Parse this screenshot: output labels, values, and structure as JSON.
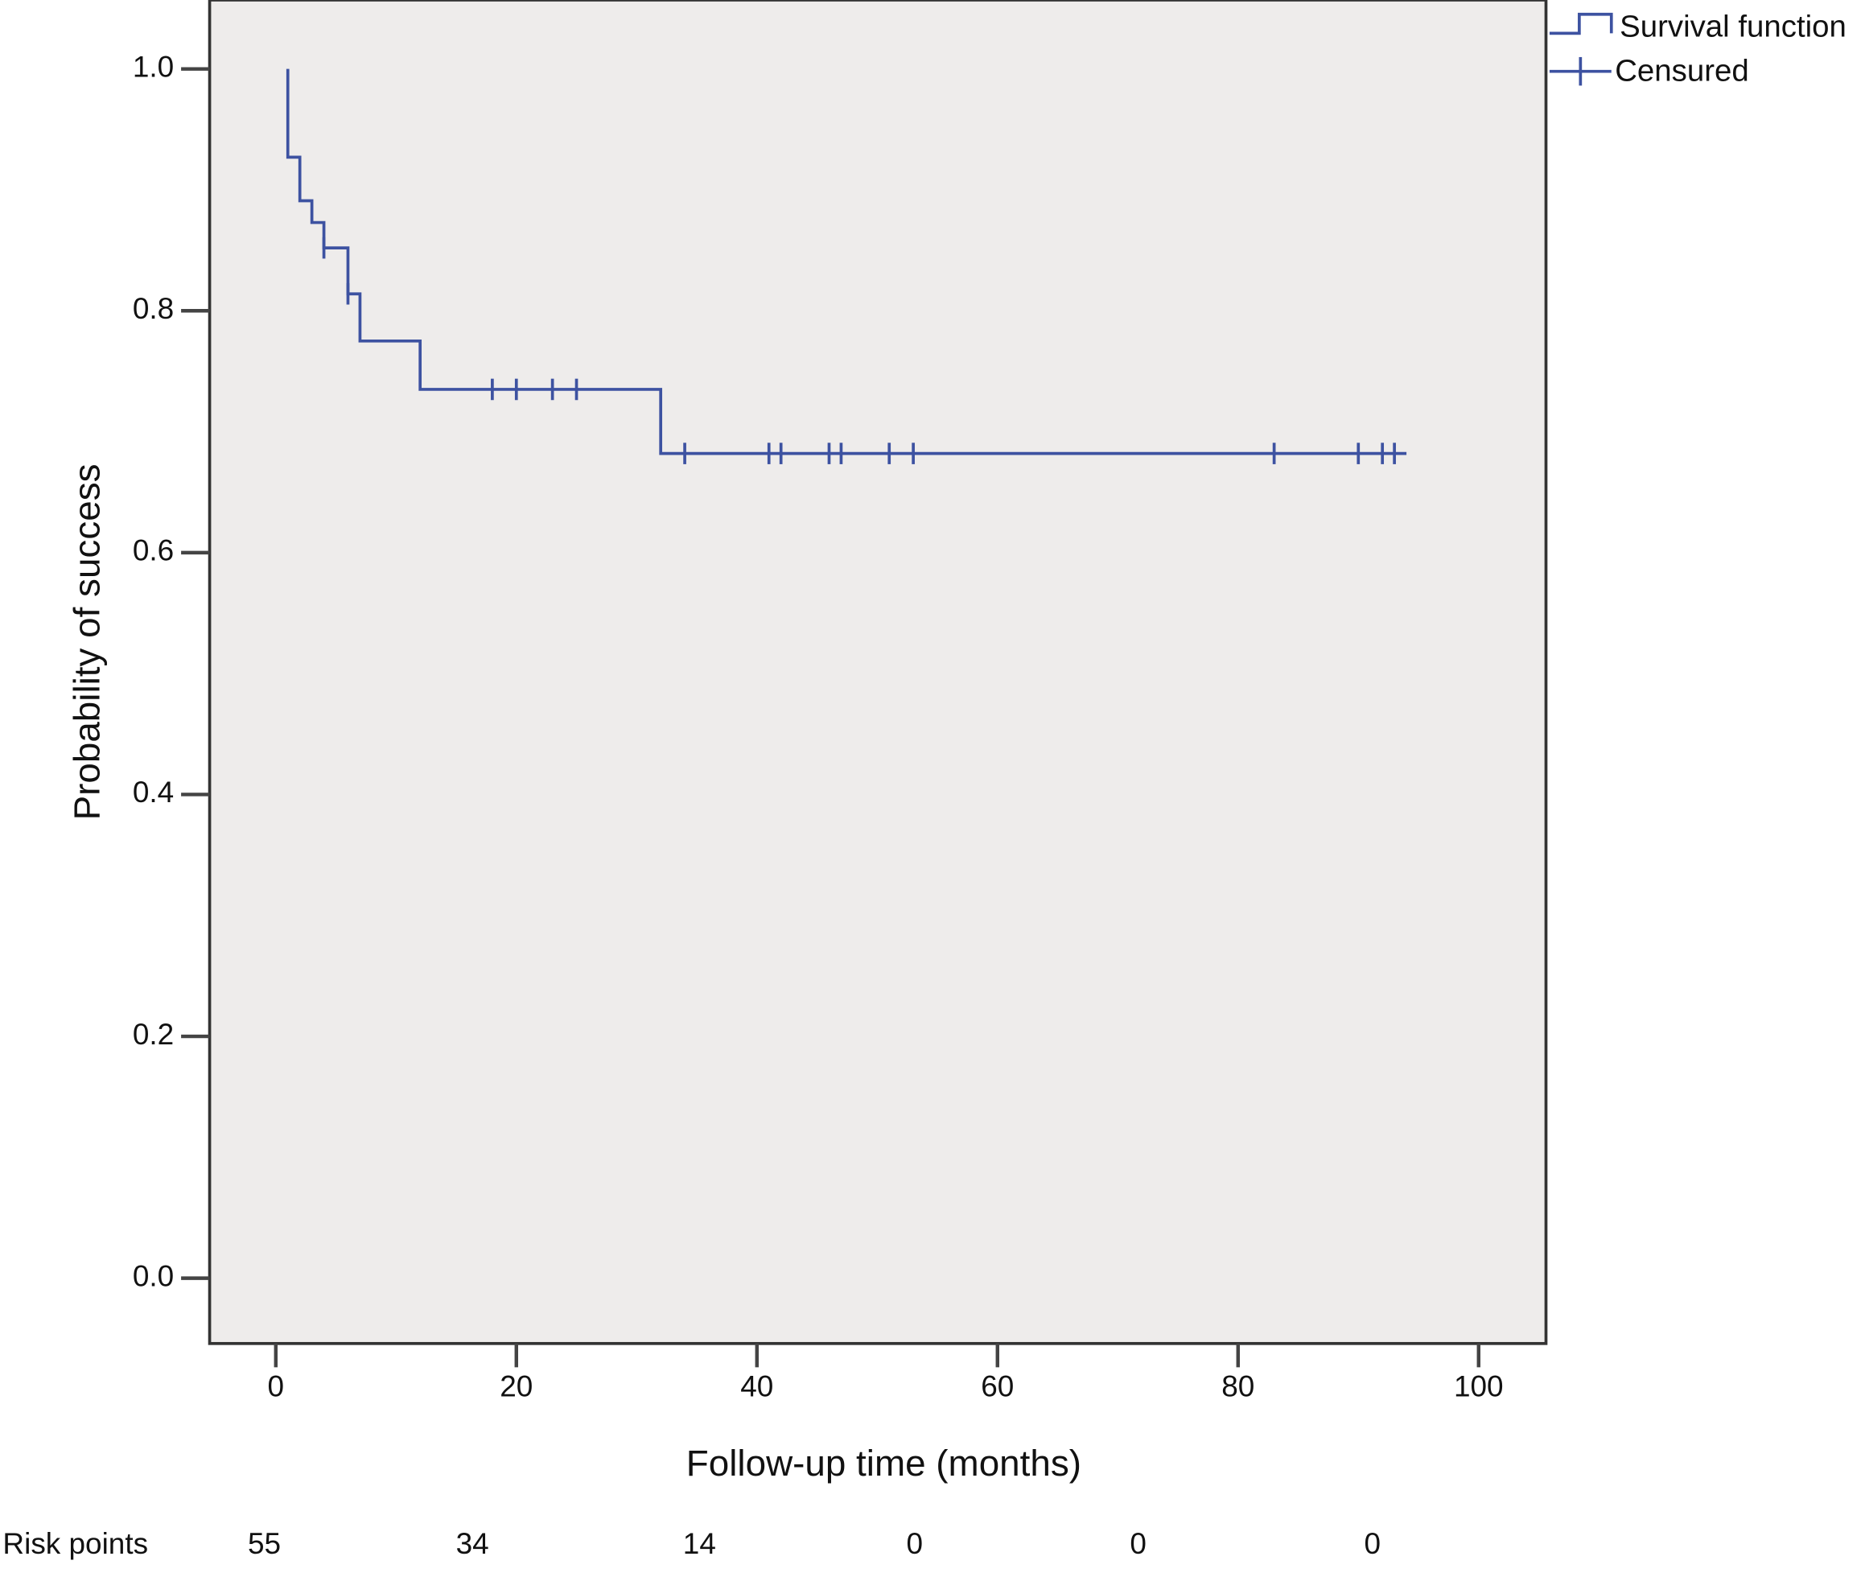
{
  "chart_data": {
    "type": "step",
    "xlabel": "Follow-up time (months)",
    "ylabel": "Probability of success",
    "xlim": [
      -5.5,
      105.6
    ],
    "ylim": [
      -0.054,
      1.057
    ],
    "xticks": [
      0,
      20,
      40,
      60,
      80,
      100
    ],
    "yticks": [
      {
        "value": 0,
        "label": "0.0"
      },
      0.2,
      0.4,
      0.6,
      0.8,
      {
        "value": 1,
        "label": "1.0"
      }
    ],
    "legend": "right",
    "series": [
      {
        "name": "Survival function",
        "color": "#3d52a1",
        "x": [
          1,
          1,
          2,
          3,
          4,
          6,
          7,
          12,
          32,
          94
        ],
        "values": [
          1.0,
          0.927,
          0.891,
          0.873,
          0.852,
          0.814,
          0.775,
          0.735,
          0.682,
          0.682
        ]
      },
      {
        "name": "Censured",
        "color": "#3d52a1",
        "x": [
          4,
          6,
          18,
          20,
          23,
          25,
          34,
          41,
          42,
          46,
          47,
          51,
          53,
          83,
          90,
          92,
          93
        ],
        "values": [
          0.852,
          0.814,
          0.735,
          0.735,
          0.735,
          0.735,
          0.682,
          0.682,
          0.682,
          0.682,
          0.682,
          0.682,
          0.682,
          0.682,
          0.682,
          0.682,
          0.682
        ]
      }
    ],
    "risk_table": {
      "label": "Risk points",
      "values": [
        55,
        34,
        14,
        0,
        0,
        0
      ]
    }
  }
}
